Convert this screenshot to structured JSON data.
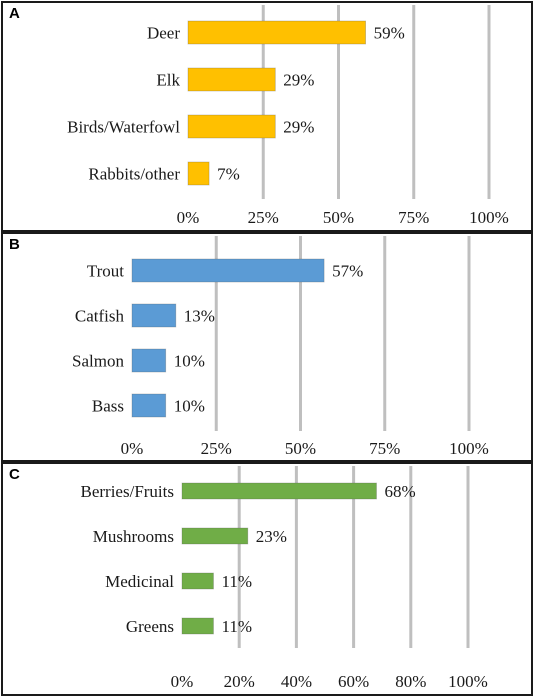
{
  "chart_data": [
    {
      "type": "bar",
      "orientation": "horizontal",
      "panel_label": "A",
      "categories": [
        "Deer",
        "Elk",
        "Birds/Waterfowl",
        "Rabbits/other"
      ],
      "values": [
        59,
        29,
        29,
        7
      ],
      "value_labels": [
        "59%",
        "29%",
        "29%",
        "7%"
      ],
      "xticks": [
        "0%",
        "25%",
        "50%",
        "75%",
        "100%"
      ],
      "xlim": [
        0,
        100
      ],
      "grid": "vertical",
      "color": "#FFC000"
    },
    {
      "type": "bar",
      "orientation": "horizontal",
      "panel_label": "B",
      "categories": [
        "Trout",
        "Catfish",
        "Salmon",
        "Bass"
      ],
      "values": [
        57,
        13,
        10,
        10
      ],
      "value_labels": [
        "57%",
        "13%",
        "10%",
        "10%"
      ],
      "xticks": [
        "0%",
        "25%",
        "50%",
        "75%",
        "100%"
      ],
      "xlim": [
        0,
        100
      ],
      "grid": "vertical",
      "color": "#5B9BD5"
    },
    {
      "type": "bar",
      "orientation": "horizontal",
      "panel_label": "C",
      "categories": [
        "Berries/Fruits",
        "Mushrooms",
        "Medicinal",
        "Greens"
      ],
      "values": [
        68,
        23,
        11,
        11
      ],
      "value_labels": [
        "68%",
        "23%",
        "11%",
        "11%"
      ],
      "xticks": [
        "0%",
        "20%",
        "40%",
        "60%",
        "80%",
        "100%"
      ],
      "xlim": [
        0,
        100
      ],
      "grid": "vertical",
      "color": "#70AD47"
    }
  ]
}
